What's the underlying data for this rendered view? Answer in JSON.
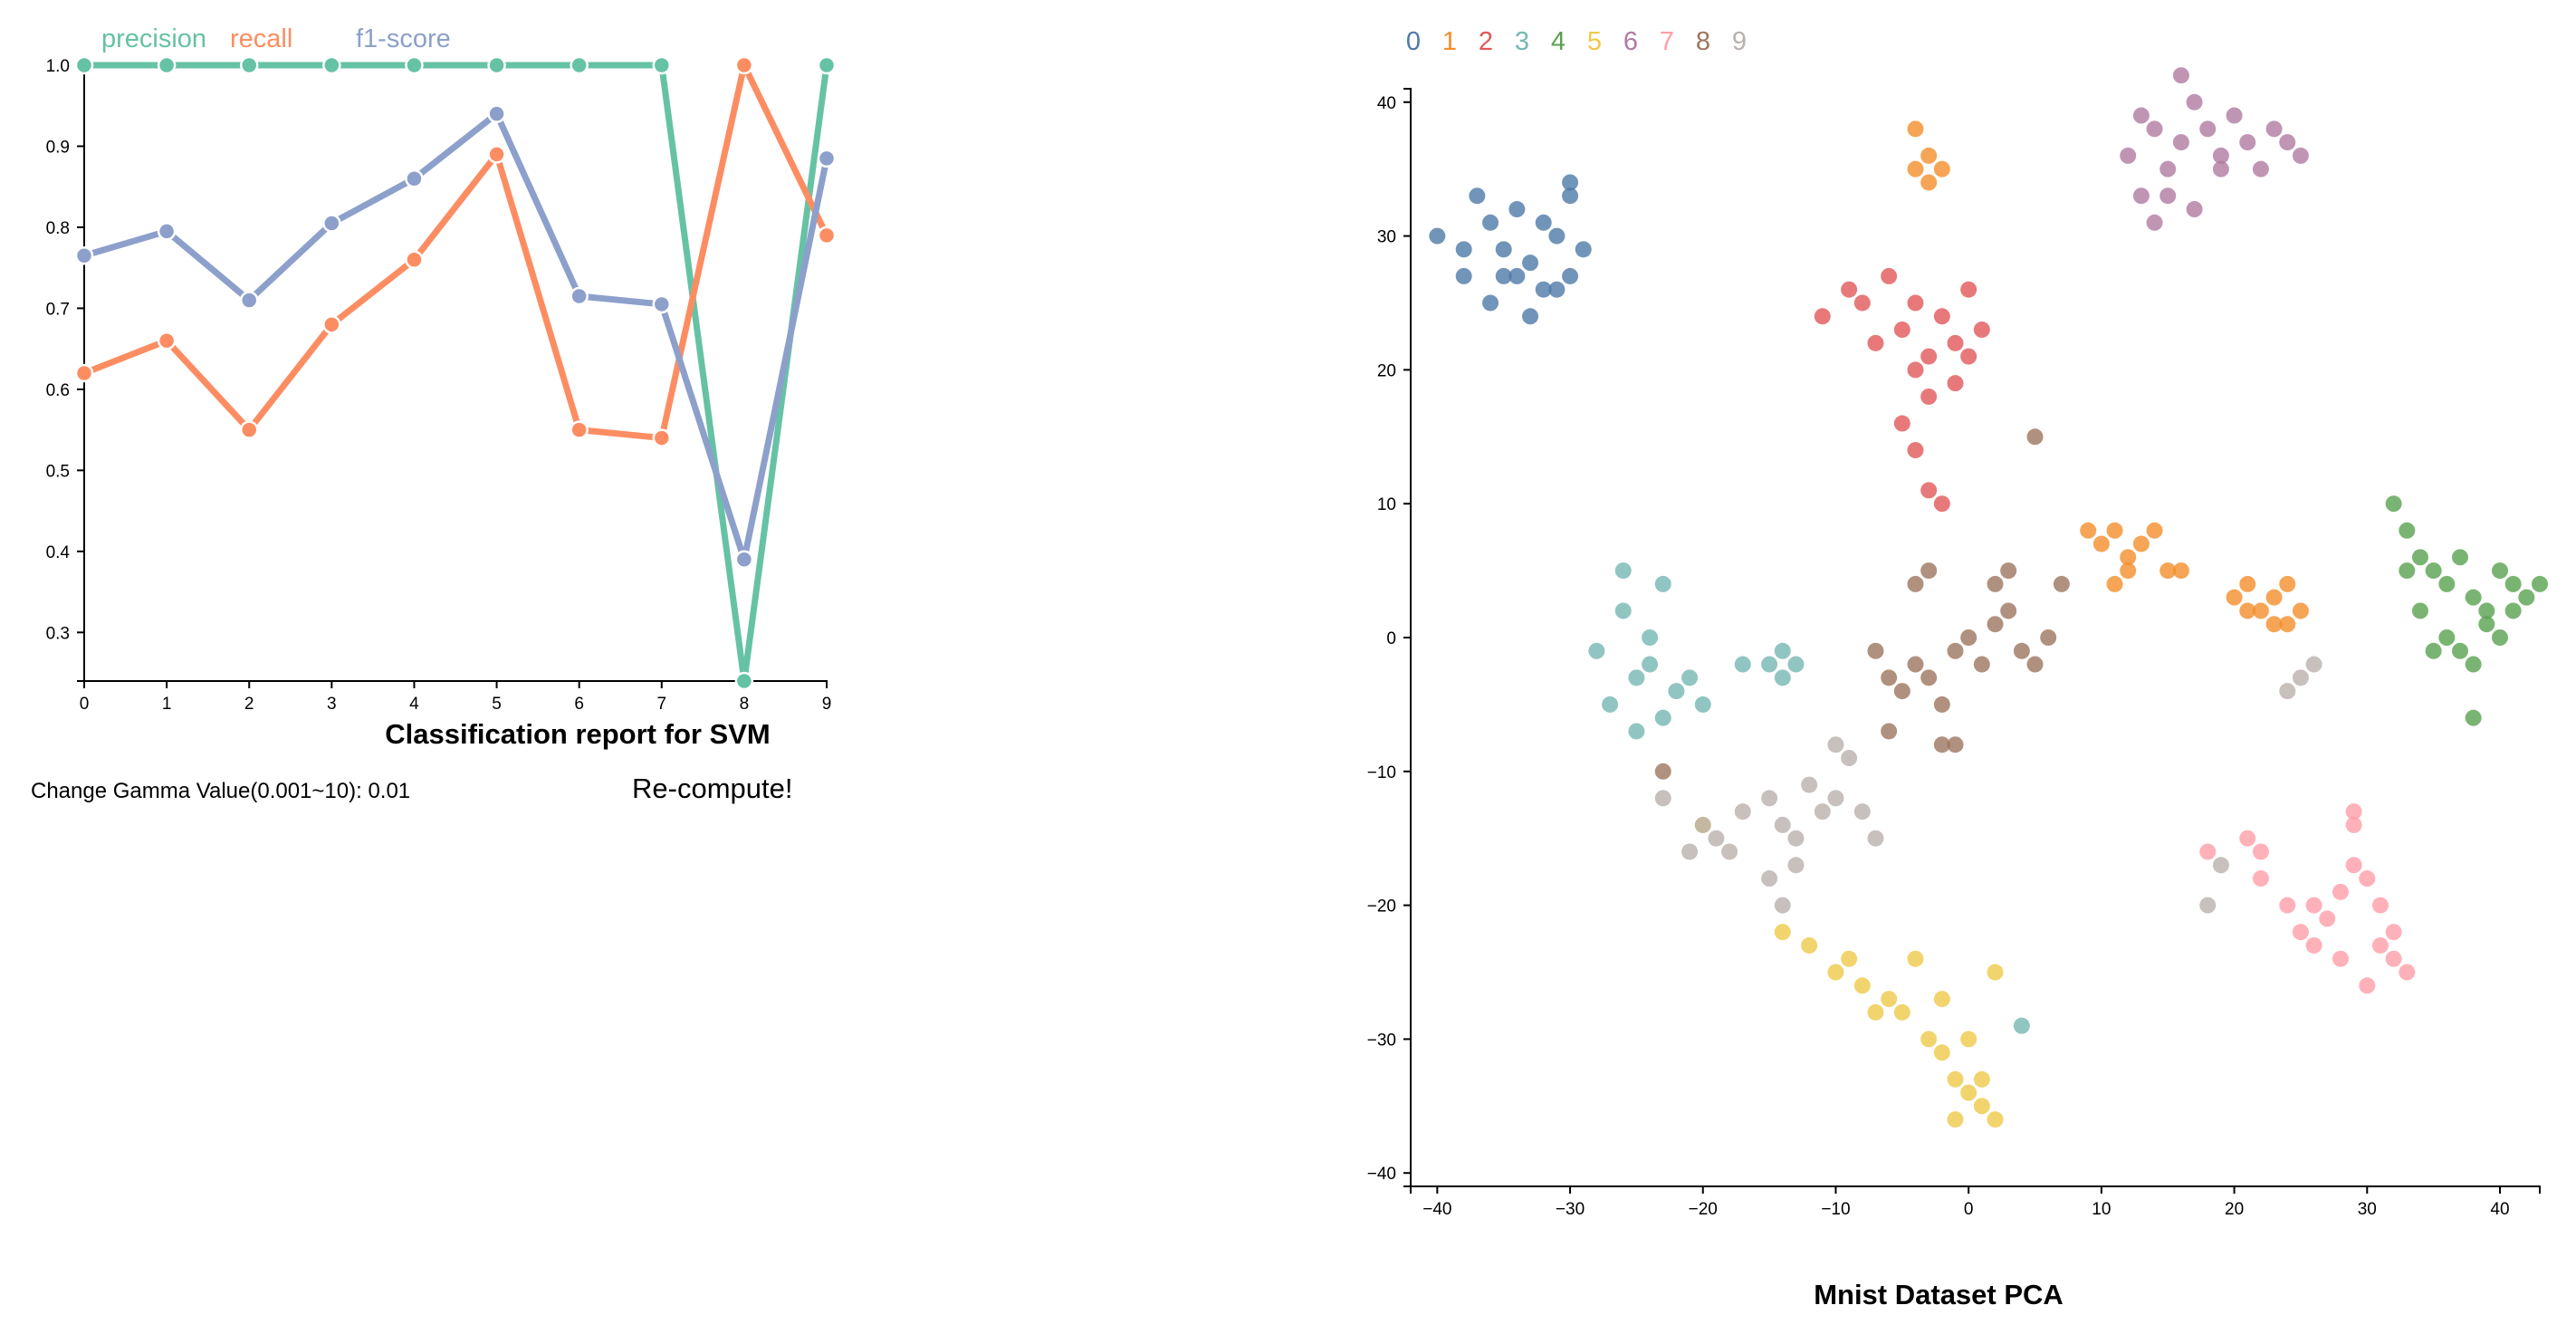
{
  "report_chart": {
    "title": "Classification report for SVM",
    "legend": [
      {
        "label": "precision",
        "color": "#66c2a5"
      },
      {
        "label": "recall",
        "color": "#fc8d62"
      },
      {
        "label": "f1-score",
        "color": "#8da0cb"
      }
    ]
  },
  "controls": {
    "gamma_label": "Change Gamma Value(0.001~10): 0.01",
    "recompute_label": "Re-compute!"
  },
  "pca_chart": {
    "title": "Mnist Dataset PCA",
    "legend": [
      {
        "label": "0",
        "color": "#4e79a7"
      },
      {
        "label": "1",
        "color": "#f28e2b"
      },
      {
        "label": "2",
        "color": "#e15759"
      },
      {
        "label": "3",
        "color": "#76b7b2"
      },
      {
        "label": "4",
        "color": "#59a14f"
      },
      {
        "label": "5",
        "color": "#edc948"
      },
      {
        "label": "6",
        "color": "#b07aa1"
      },
      {
        "label": "7",
        "color": "#ff9da7"
      },
      {
        "label": "8",
        "color": "#9c755f"
      },
      {
        "label": "9",
        "color": "#bab0ac"
      }
    ]
  },
  "chart_data": [
    {
      "type": "line",
      "title": "Classification report for SVM",
      "x": [
        0,
        1,
        2,
        3,
        4,
        5,
        6,
        7,
        8,
        9
      ],
      "xlim": [
        0,
        9
      ],
      "ylim": [
        0.24,
        1.0
      ],
      "yticks": [
        0.3,
        0.4,
        0.5,
        0.6,
        0.7,
        0.8,
        0.9,
        1.0
      ],
      "legend_position": "top",
      "series": [
        {
          "name": "precision",
          "color": "#66c2a5",
          "values": [
            1.0,
            1.0,
            1.0,
            1.0,
            1.0,
            1.0,
            1.0,
            1.0,
            0.24,
            1.0
          ]
        },
        {
          "name": "recall",
          "color": "#fc8d62",
          "values": [
            0.62,
            0.66,
            0.55,
            0.68,
            0.76,
            0.89,
            0.55,
            0.54,
            1.0,
            0.79
          ]
        },
        {
          "name": "f1-score",
          "color": "#8da0cb",
          "values": [
            0.765,
            0.795,
            0.71,
            0.805,
            0.86,
            0.94,
            0.715,
            0.705,
            0.39,
            0.885
          ]
        }
      ]
    },
    {
      "type": "scatter",
      "title": "Mnist Dataset PCA",
      "xlim": [
        -42,
        43
      ],
      "ylim": [
        -41,
        41
      ],
      "xticks": [
        -40,
        -30,
        -20,
        -10,
        0,
        10,
        20,
        30,
        40
      ],
      "yticks": [
        -40,
        -30,
        -20,
        -10,
        0,
        10,
        20,
        30,
        40
      ],
      "legend_position": "top-left",
      "series": [
        {
          "name": "0",
          "color": "#4e79a7",
          "points": [
            [
              -40,
              30
            ],
            [
              -38,
              27
            ],
            [
              -36,
              25
            ],
            [
              -35,
              29
            ],
            [
              -34,
              32
            ],
            [
              -33,
              28
            ],
            [
              -32,
              31
            ],
            [
              -31,
              26
            ],
            [
              -30,
              33
            ],
            [
              -29,
              29
            ],
            [
              -30,
              34
            ],
            [
              -33,
              24
            ],
            [
              -37,
              33
            ],
            [
              -35,
              27
            ],
            [
              -32,
              26
            ],
            [
              -31,
              30
            ],
            [
              -34,
              27
            ],
            [
              -36,
              31
            ],
            [
              -38,
              29
            ],
            [
              -30,
              27
            ]
          ]
        },
        {
          "name": "1",
          "color": "#f28e2b",
          "points": [
            [
              -4,
              38
            ],
            [
              -3,
              36
            ],
            [
              -2,
              35
            ],
            [
              -4,
              35
            ],
            [
              -3,
              34
            ],
            [
              9,
              8
            ],
            [
              10,
              7
            ],
            [
              11,
              8
            ],
            [
              12,
              6
            ],
            [
              13,
              7
            ],
            [
              12,
              5
            ],
            [
              14,
              8
            ],
            [
              15,
              5
            ],
            [
              16,
              5
            ],
            [
              11,
              4
            ],
            [
              20,
              3
            ],
            [
              21,
              4
            ],
            [
              22,
              2
            ],
            [
              23,
              3
            ],
            [
              24,
              4
            ],
            [
              25,
              2
            ],
            [
              23,
              1
            ],
            [
              21,
              2
            ],
            [
              24,
              1
            ]
          ]
        },
        {
          "name": "2",
          "color": "#e15759",
          "points": [
            [
              -11,
              24
            ],
            [
              -9,
              26
            ],
            [
              -8,
              25
            ],
            [
              -6,
              27
            ],
            [
              -5,
              23
            ],
            [
              -4,
              25
            ],
            [
              -3,
              21
            ],
            [
              -2,
              24
            ],
            [
              -1,
              22
            ],
            [
              0,
              26
            ],
            [
              -3,
              18
            ],
            [
              -5,
              16
            ],
            [
              -4,
              14
            ],
            [
              -3,
              11
            ],
            [
              -2,
              10
            ],
            [
              1,
              23
            ],
            [
              -7,
              22
            ],
            [
              -1,
              19
            ],
            [
              -4,
              20
            ],
            [
              0,
              21
            ]
          ]
        },
        {
          "name": "3",
          "color": "#76b7b2",
          "points": [
            [
              -28,
              -1
            ],
            [
              -26,
              2
            ],
            [
              -25,
              -3
            ],
            [
              -24,
              0
            ],
            [
              -23,
              4
            ],
            [
              -27,
              -5
            ],
            [
              -25,
              -7
            ],
            [
              -23,
              -6
            ],
            [
              -22,
              -4
            ],
            [
              -21,
              -3
            ],
            [
              -20,
              -5
            ],
            [
              -26,
              5
            ],
            [
              -24,
              -2
            ],
            [
              -15,
              -2
            ],
            [
              -14,
              -1
            ],
            [
              -13,
              -2
            ],
            [
              -14,
              -3
            ],
            [
              -17,
              -2
            ],
            [
              4,
              -29
            ]
          ]
        },
        {
          "name": "4",
          "color": "#59a14f",
          "points": [
            [
              32,
              10
            ],
            [
              33,
              8
            ],
            [
              34,
              6
            ],
            [
              35,
              5
            ],
            [
              36,
              4
            ],
            [
              37,
              6
            ],
            [
              38,
              3
            ],
            [
              39,
              2
            ],
            [
              40,
              5
            ],
            [
              41,
              4
            ],
            [
              42,
              3
            ],
            [
              43,
              4
            ],
            [
              34,
              2
            ],
            [
              36,
              0
            ],
            [
              37,
              -1
            ],
            [
              38,
              -2
            ],
            [
              39,
              1
            ],
            [
              40,
              0
            ],
            [
              41,
              2
            ],
            [
              38,
              -6
            ],
            [
              35,
              -1
            ],
            [
              33,
              5
            ]
          ]
        },
        {
          "name": "5",
          "color": "#edc948",
          "points": [
            [
              -14,
              -22
            ],
            [
              -12,
              -23
            ],
            [
              -10,
              -25
            ],
            [
              -8,
              -26
            ],
            [
              -6,
              -27
            ],
            [
              -5,
              -28
            ],
            [
              -3,
              -30
            ],
            [
              -2,
              -31
            ],
            [
              -1,
              -33
            ],
            [
              0,
              -34
            ],
            [
              1,
              -35
            ],
            [
              2,
              -36
            ],
            [
              -1,
              -36
            ],
            [
              1,
              -33
            ],
            [
              0,
              -30
            ],
            [
              2,
              -25
            ],
            [
              -4,
              -24
            ],
            [
              -7,
              -28
            ],
            [
              -9,
              -24
            ],
            [
              -2,
              -27
            ],
            [
              -20,
              -14
            ]
          ]
        },
        {
          "name": "6",
          "color": "#b07aa1",
          "points": [
            [
              12,
              36
            ],
            [
              13,
              39
            ],
            [
              14,
              38
            ],
            [
              15,
              35
            ],
            [
              16,
              37
            ],
            [
              17,
              40
            ],
            [
              18,
              38
            ],
            [
              19,
              36
            ],
            [
              20,
              39
            ],
            [
              21,
              37
            ],
            [
              22,
              35
            ],
            [
              23,
              38
            ],
            [
              24,
              37
            ],
            [
              25,
              36
            ],
            [
              16,
              42
            ],
            [
              15,
              33
            ],
            [
              17,
              32
            ],
            [
              14,
              31
            ],
            [
              13,
              33
            ],
            [
              19,
              35
            ]
          ]
        },
        {
          "name": "7",
          "color": "#ff9da7",
          "points": [
            [
              21,
              -15
            ],
            [
              22,
              -16
            ],
            [
              22,
              -18
            ],
            [
              24,
              -20
            ],
            [
              25,
              -22
            ],
            [
              26,
              -23
            ],
            [
              27,
              -21
            ],
            [
              28,
              -19
            ],
            [
              29,
              -17
            ],
            [
              29,
              -14
            ],
            [
              30,
              -18
            ],
            [
              31,
              -20
            ],
            [
              31,
              -23
            ],
            [
              32,
              -24
            ],
            [
              33,
              -25
            ],
            [
              32,
              -22
            ],
            [
              30,
              -26
            ],
            [
              28,
              -24
            ],
            [
              26,
              -20
            ],
            [
              29,
              -13
            ],
            [
              18,
              -16
            ]
          ]
        },
        {
          "name": "8",
          "color": "#9c755f",
          "points": [
            [
              -7,
              -1
            ],
            [
              -6,
              -3
            ],
            [
              -5,
              -4
            ],
            [
              -4,
              -2
            ],
            [
              -3,
              -3
            ],
            [
              -2,
              -5
            ],
            [
              -1,
              -1
            ],
            [
              0,
              0
            ],
            [
              1,
              -2
            ],
            [
              2,
              1
            ],
            [
              3,
              2
            ],
            [
              4,
              -1
            ],
            [
              5,
              -2
            ],
            [
              6,
              0
            ],
            [
              2,
              4
            ],
            [
              3,
              5
            ],
            [
              -4,
              4
            ],
            [
              -3,
              5
            ],
            [
              -6,
              -7
            ],
            [
              -2,
              -8
            ],
            [
              -1,
              -8
            ],
            [
              5,
              15
            ],
            [
              -23,
              -10
            ],
            [
              7,
              4
            ]
          ]
        },
        {
          "name": "9",
          "color": "#bab0ac",
          "points": [
            [
              -21,
              -16
            ],
            [
              -20,
              -14
            ],
            [
              -19,
              -15
            ],
            [
              -18,
              -16
            ],
            [
              -17,
              -13
            ],
            [
              -15,
              -12
            ],
            [
              -14,
              -14
            ],
            [
              -13,
              -15
            ],
            [
              -12,
              -11
            ],
            [
              -11,
              -13
            ],
            [
              -10,
              -12
            ],
            [
              -9,
              -9
            ],
            [
              -8,
              -13
            ],
            [
              -7,
              -15
            ],
            [
              -13,
              -17
            ],
            [
              -15,
              -18
            ],
            [
              -14,
              -20
            ],
            [
              -23,
              -12
            ],
            [
              19,
              -17
            ],
            [
              18,
              -20
            ],
            [
              25,
              -3
            ],
            [
              26,
              -2
            ],
            [
              24,
              -4
            ],
            [
              -10,
              -8
            ]
          ]
        }
      ]
    }
  ]
}
